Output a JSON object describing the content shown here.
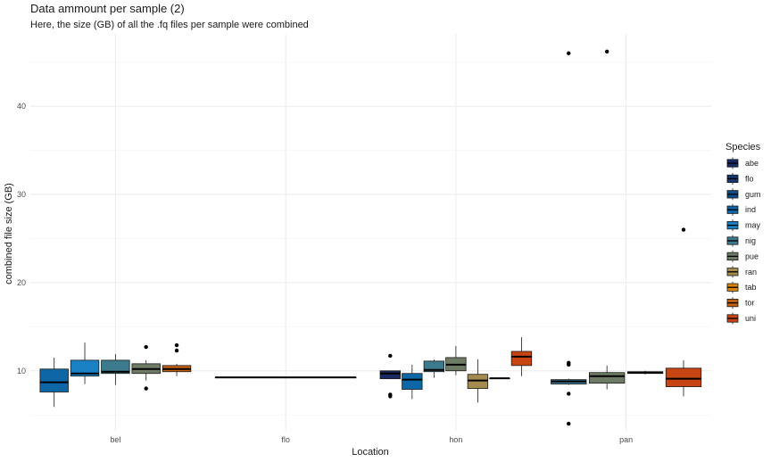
{
  "chart_data": {
    "type": "box",
    "title": "Data ammount per sample (2)",
    "subtitle": "Here, the size (GB) of all the .fq files per sample were combined",
    "xlabel": "Location",
    "ylabel": "combined file size (GB)",
    "categories": [
      "bel",
      "flo",
      "hon",
      "pan"
    ],
    "y_ticks": [
      10,
      20,
      30,
      40
    ],
    "ylim": [
      3.2,
      48.2
    ],
    "grid": true,
    "legend_title": "Species",
    "legend_position": "right",
    "series": [
      {
        "name": "abe",
        "color": "#1b2a63"
      },
      {
        "name": "flo",
        "color": "#16376e"
      },
      {
        "name": "gum",
        "color": "#0c4a88"
      },
      {
        "name": "ind",
        "color": "#0d66a6"
      },
      {
        "name": "may",
        "color": "#1a82c4"
      },
      {
        "name": "nig",
        "color": "#3c7a8e"
      },
      {
        "name": "pue",
        "color": "#6d7b67"
      },
      {
        "name": "ran",
        "color": "#a48a4f"
      },
      {
        "name": "tab",
        "color": "#d8860f"
      },
      {
        "name": "tor",
        "color": "#c15f12"
      },
      {
        "name": "uni",
        "color": "#c74512"
      }
    ],
    "boxes": [
      {
        "location": "bel",
        "species": "ind",
        "min": 5.9,
        "q1": 7.6,
        "median": 8.7,
        "q3": 10.2,
        "max": 11.5,
        "outliers": []
      },
      {
        "location": "bel",
        "species": "may",
        "min": 8.5,
        "q1": 9.4,
        "median": 9.7,
        "q3": 11.2,
        "max": 13.2,
        "outliers": []
      },
      {
        "location": "bel",
        "species": "nig",
        "min": 8.4,
        "q1": 9.7,
        "median": 9.9,
        "q3": 11.2,
        "max": 11.9,
        "outliers": []
      },
      {
        "location": "bel",
        "species": "pue",
        "min": 8.9,
        "q1": 9.7,
        "median": 10.2,
        "q3": 10.8,
        "max": 11.2,
        "outliers": [
          12.7,
          8.0
        ]
      },
      {
        "location": "bel",
        "species": "tor",
        "min": 9.4,
        "q1": 9.9,
        "median": 10.2,
        "q3": 10.6,
        "max": 10.8,
        "outliers": [
          12.9,
          12.3
        ]
      },
      {
        "location": "flo",
        "species": "abe",
        "min": 9.25,
        "q1": 9.25,
        "median": 9.25,
        "q3": 9.25,
        "max": 9.25,
        "outliers": []
      },
      {
        "location": "hon",
        "species": "abe",
        "min": 9.1,
        "q1": 9.1,
        "median": 9.7,
        "q3": 10.0,
        "max": 10.0,
        "outliers": [
          11.7,
          7.3,
          7.1
        ]
      },
      {
        "location": "hon",
        "species": "ind",
        "min": 6.8,
        "q1": 7.9,
        "median": 9.0,
        "q3": 9.7,
        "max": 10.7,
        "outliers": []
      },
      {
        "location": "hon",
        "species": "nig",
        "min": 9.2,
        "q1": 9.9,
        "median": 10.1,
        "q3": 11.1,
        "max": 11.3,
        "outliers": []
      },
      {
        "location": "hon",
        "species": "pue",
        "min": 9.5,
        "q1": 10.0,
        "median": 10.7,
        "q3": 11.5,
        "max": 12.8,
        "outliers": []
      },
      {
        "location": "hon",
        "species": "ran",
        "min": 6.4,
        "q1": 8.0,
        "median": 8.9,
        "q3": 9.6,
        "max": 11.3,
        "outliers": []
      },
      {
        "location": "hon",
        "species": "tab",
        "min": 9.15,
        "q1": 9.15,
        "median": 9.15,
        "q3": 9.15,
        "max": 9.15,
        "outliers": []
      },
      {
        "location": "hon",
        "species": "uni",
        "min": 9.4,
        "q1": 10.6,
        "median": 11.6,
        "q3": 12.2,
        "max": 13.8,
        "outliers": []
      },
      {
        "location": "pan",
        "species": "nig",
        "min": 8.4,
        "q1": 8.5,
        "median": 8.8,
        "q3": 9.0,
        "max": 9.1,
        "outliers": [
          46.0,
          10.9,
          10.7,
          7.4,
          4.0
        ]
      },
      {
        "location": "pan",
        "species": "pue",
        "min": 7.9,
        "q1": 8.6,
        "median": 9.4,
        "q3": 9.8,
        "max": 10.6,
        "outliers": [
          46.2
        ]
      },
      {
        "location": "pan",
        "species": "tab",
        "min": 9.6,
        "q1": 9.7,
        "median": 9.8,
        "q3": 9.9,
        "max": 10.0,
        "outliers": []
      },
      {
        "location": "pan",
        "species": "uni",
        "min": 7.1,
        "q1": 8.2,
        "median": 9.1,
        "q3": 10.3,
        "max": 11.2,
        "outliers": [
          26.0
        ]
      }
    ]
  }
}
